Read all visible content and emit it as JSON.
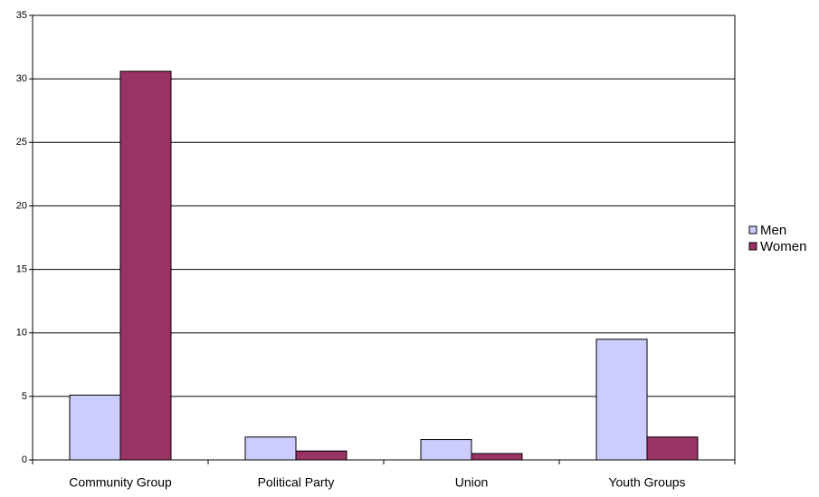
{
  "chart_data": {
    "type": "bar",
    "categories": [
      "Community Group",
      "Political Party",
      "Union",
      "Youth Groups"
    ],
    "series": [
      {
        "name": "Men",
        "color": "#ccccff",
        "values": [
          5.1,
          1.8,
          1.6,
          9.5
        ]
      },
      {
        "name": "Women",
        "color": "#993366",
        "values": [
          30.6,
          0.7,
          0.5,
          1.8
        ]
      }
    ],
    "ylim": [
      0,
      35
    ],
    "yticks": [
      0,
      5,
      10,
      15,
      20,
      25,
      30,
      35
    ],
    "grid": true,
    "legend": "right"
  }
}
